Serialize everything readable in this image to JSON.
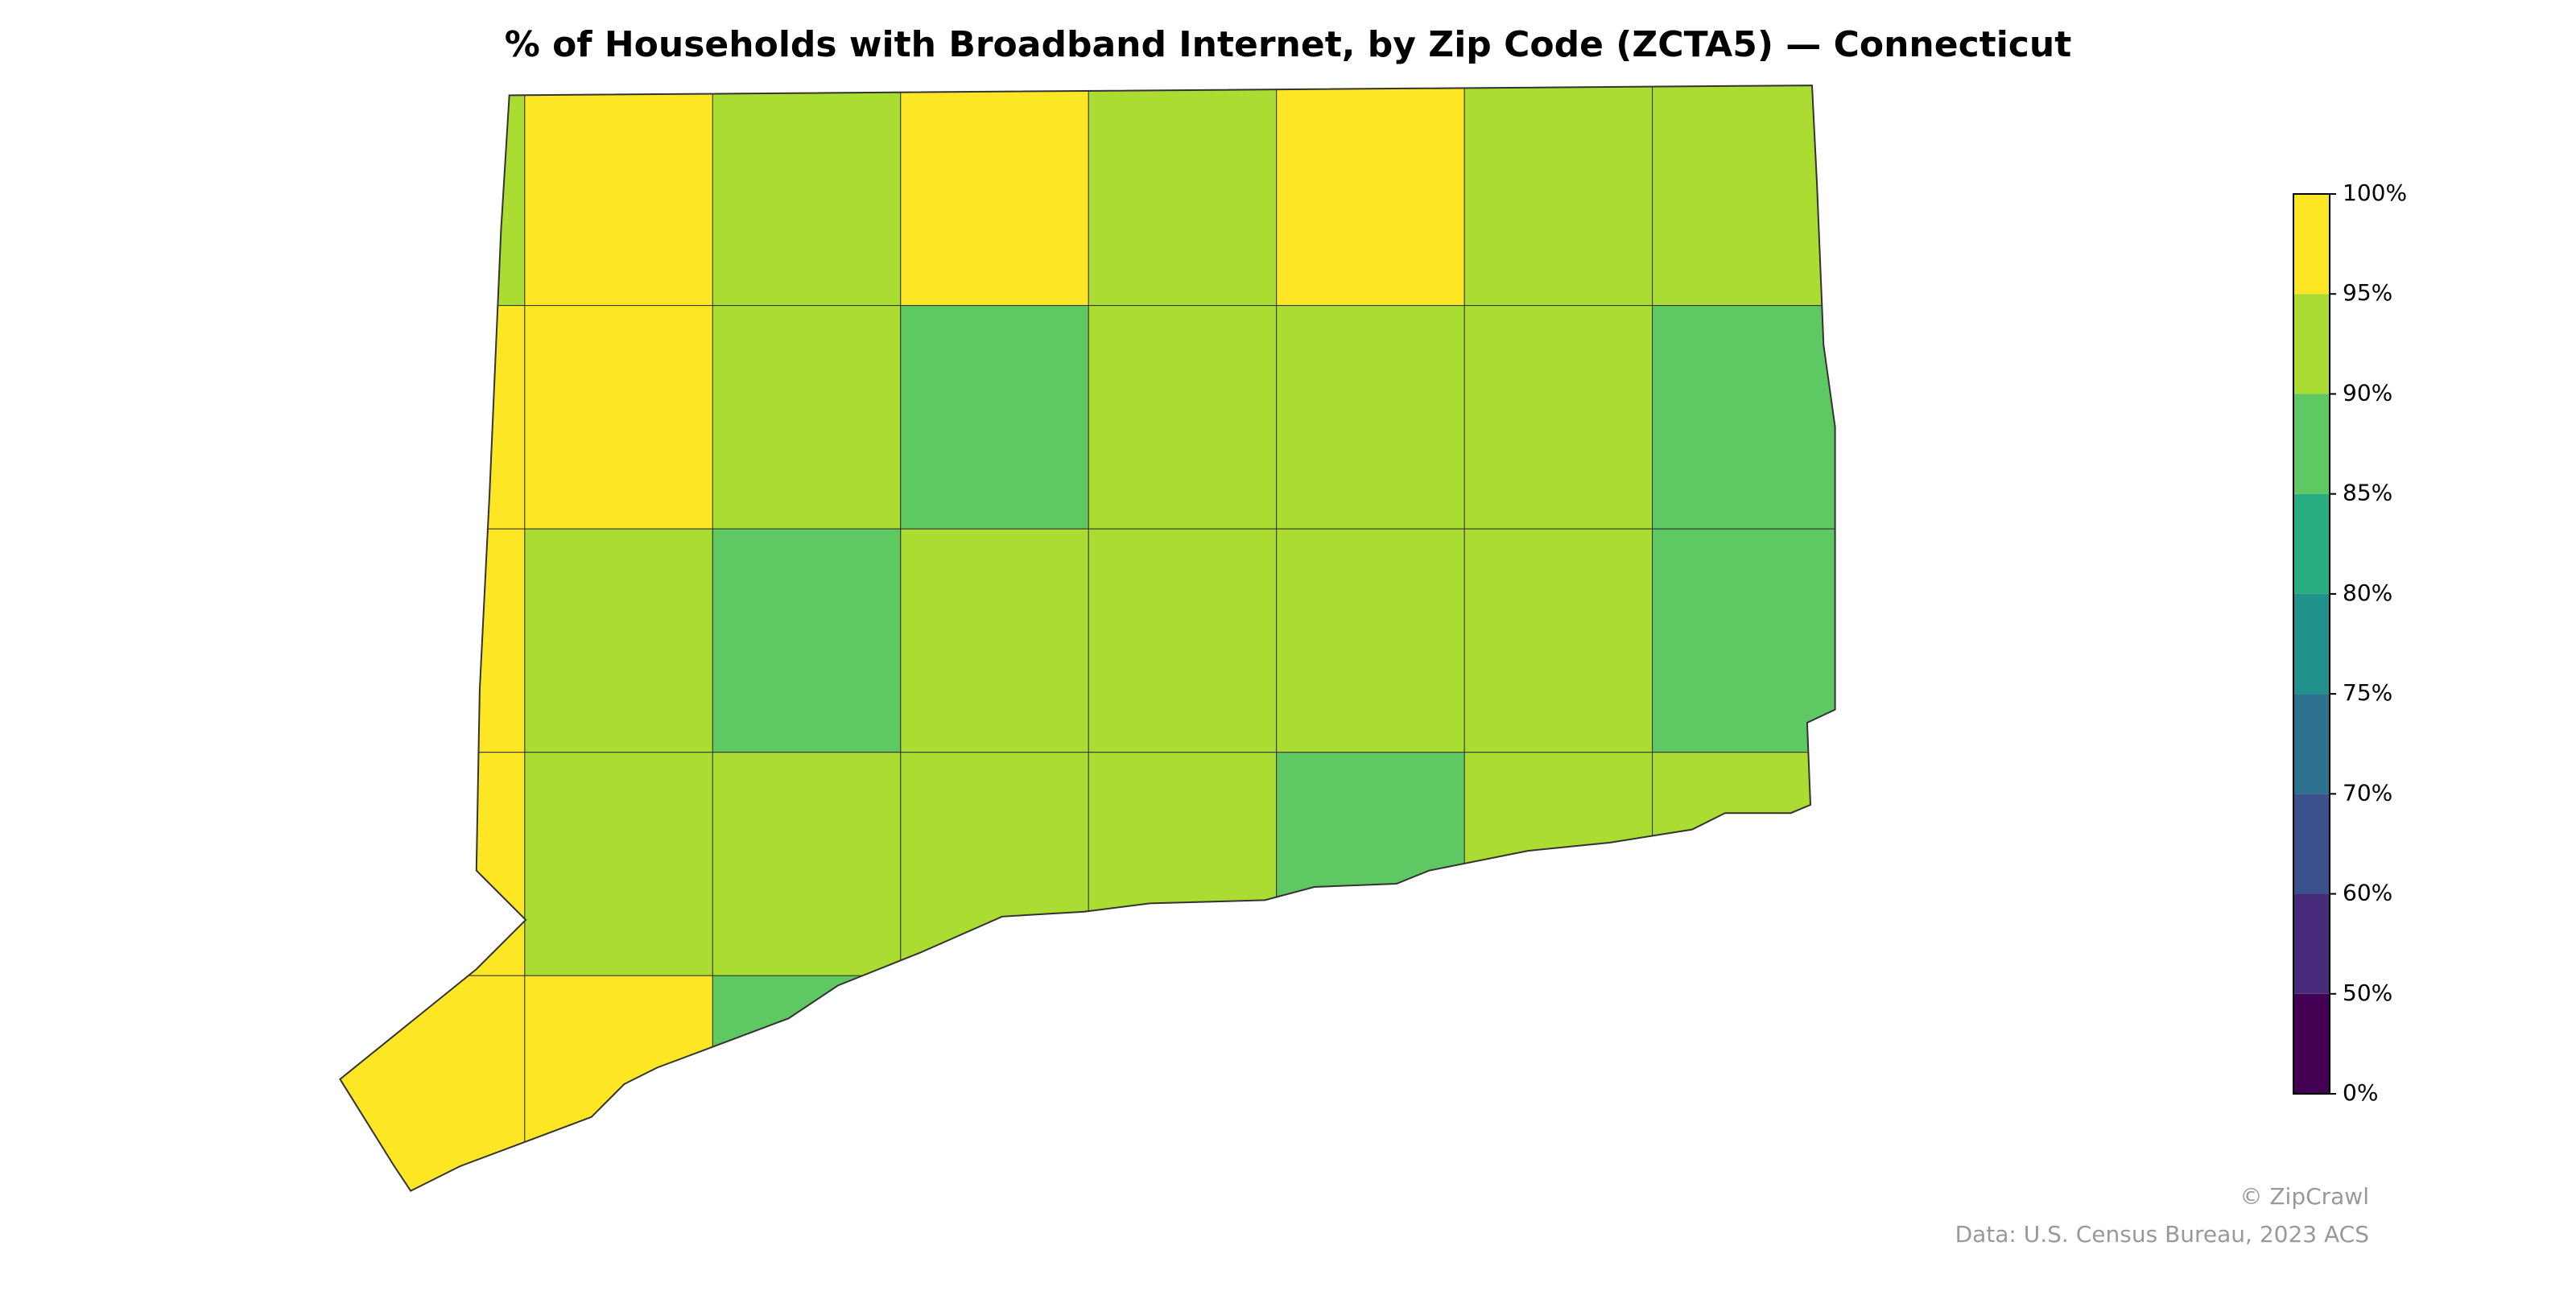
{
  "chart_data": {
    "type": "choropleth",
    "title": "% of Households with Broadband Internet, by Zip Code (ZCTA5) — Connecticut",
    "values": [
      [
        93,
        96,
        91,
        95,
        92,
        96,
        93,
        91
      ],
      [
        96,
        95,
        94,
        88,
        92,
        93,
        90,
        87
      ],
      [
        96,
        92,
        85,
        90,
        91,
        93,
        92,
        86
      ],
      [
        96,
        92,
        92,
        90,
        92,
        89,
        94,
        90
      ],
      [
        97,
        96,
        89,
        null,
        null,
        null,
        null,
        null
      ]
    ],
    "missing_color": "#d3d3d3",
    "colorbar": {
      "ticks": [
        {
          "value": 0,
          "label": "0%"
        },
        {
          "value": 50,
          "label": "50%"
        },
        {
          "value": 60,
          "label": "60%"
        },
        {
          "value": 70,
          "label": "70%"
        },
        {
          "value": 75,
          "label": "75%"
        },
        {
          "value": 80,
          "label": "80%"
        },
        {
          "value": 85,
          "label": "85%"
        },
        {
          "value": 90,
          "label": "90%"
        },
        {
          "value": 95,
          "label": "95%"
        },
        {
          "value": 100,
          "label": "100%"
        }
      ],
      "colors": [
        "#440154",
        "#472a7a",
        "#3b518b",
        "#2c718e",
        "#21918c",
        "#27ad81",
        "#5ec962",
        "#aadc32",
        "#fde725"
      ]
    },
    "credit": "© ZipCrawl",
    "source": "Data: U.S. Census Bureau, 2023 ACS"
  }
}
